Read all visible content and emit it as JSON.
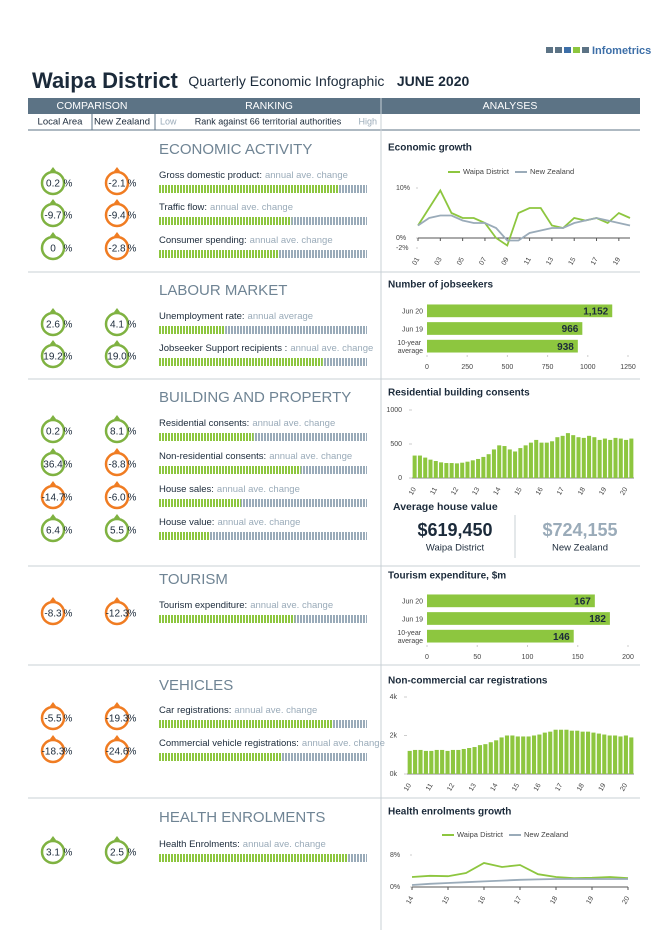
{
  "header": {
    "brand": "Infometrics",
    "title": "Waipa District",
    "subtitle": "Quarterly Economic Infographic",
    "period": "JUNE 2020"
  },
  "columns": {
    "comparison": "COMPARISON",
    "ranking": "RANKING",
    "analyses": "ANALYSES",
    "local": "Local Area",
    "national": "New Zealand",
    "low": "Low",
    "rank_label": "Rank against 66 territorial authorities",
    "high": "High",
    "rank_max": 66
  },
  "percent_sign": "%",
  "sections": [
    {
      "title": "ECONOMIC ACTIVITY",
      "indicators": [
        {
          "name": "Gross domestic product:",
          "note": "annual ave. change",
          "local": 0.2,
          "local_color": "#7fb241",
          "national": -2.1,
          "national_color": "#f07c22",
          "rank": 57
        },
        {
          "name": "Traffic flow:",
          "note": "annual ave. change",
          "local": -9.7,
          "local_color": "#7fb241",
          "national": -9.4,
          "national_color": "#f07c22",
          "rank": 42
        },
        {
          "name": "Consumer spending:",
          "note": "annual ave. change",
          "local": 0,
          "local_color": "#7fb241",
          "national": -2.8,
          "national_color": "#f07c22",
          "rank": 38
        }
      ],
      "chart": {
        "type": "line",
        "title": "Economic growth",
        "x": [
          2001,
          2002,
          2003,
          2004,
          2005,
          2006,
          2007,
          2008,
          2009,
          2010,
          2011,
          2012,
          2013,
          2014,
          2015,
          2016,
          2017,
          2018,
          2019,
          2020
        ],
        "xlim": [
          2001,
          2020
        ],
        "xticks": [
          {
            "value": 2001,
            "label": "01"
          },
          {
            "value": 2003,
            "label": "03"
          },
          {
            "value": 2005,
            "label": "05"
          },
          {
            "value": 2007,
            "label": "07"
          },
          {
            "value": 2009,
            "label": "09"
          },
          {
            "value": 2011,
            "label": "11"
          },
          {
            "value": 2013,
            "label": "13"
          },
          {
            "value": 2015,
            "label": "15"
          },
          {
            "value": 2017,
            "label": "17"
          },
          {
            "value": 2019,
            "label": "19"
          }
        ],
        "ylim": [
          -2,
          12
        ],
        "yticks": [
          {
            "value": 10,
            "label": "10%"
          },
          {
            "value": 0,
            "label": "0%"
          },
          {
            "value": -2,
            "label": "-2%"
          }
        ],
        "series": [
          {
            "name": "Waipa District",
            "color": "#8dc63f",
            "values": [
              2.5,
              6,
              9.5,
              5,
              4,
              4,
              3,
              0,
              -1.5,
              5,
              6,
              6,
              2.5,
              2,
              4,
              3.5,
              4,
              3,
              5,
              4
            ]
          },
          {
            "name": "New Zealand",
            "color": "#9aabb9",
            "values": [
              2.5,
              4,
              4.5,
              4.5,
              3.5,
              3,
              3,
              2,
              -0.5,
              -0.5,
              1,
              1.5,
              2,
              2,
              3,
              3.5,
              4,
              3.5,
              3,
              2.5
            ]
          }
        ]
      }
    },
    {
      "title": "LABOUR MARKET",
      "indicators": [
        {
          "name": "Unemployment rate:",
          "note": "annual average",
          "local": 2.6,
          "local_color": "#7fb241",
          "national": 4.1,
          "national_color": "#7fb241",
          "rank": 21
        },
        {
          "name": "Jobseeker Support recipients :",
          "note": "annual ave. change",
          "local": 19.2,
          "local_color": "#7fb241",
          "national": 19.0,
          "national_label": "19.0",
          "national_color": "#7fb241",
          "rank": 52
        }
      ],
      "chart": {
        "type": "hbar",
        "title": "Number of jobseekers",
        "categories": [
          "Jun 20",
          "Jun 19",
          "10-year average"
        ],
        "values": [
          1152,
          966,
          938
        ],
        "value_labels": [
          "1,152",
          "966",
          "938"
        ],
        "color": "#8dc63f",
        "xlim": [
          0,
          1250
        ],
        "xticks": [
          0,
          250,
          500,
          750,
          1000,
          1250
        ]
      }
    },
    {
      "title": "BUILDING AND PROPERTY",
      "indicators": [
        {
          "name": "Residential consents:",
          "note": "annual ave. change",
          "local": 0.2,
          "local_color": "#7fb241",
          "national": 8.1,
          "national_color": "#7fb241",
          "rank": 30
        },
        {
          "name": "Non-residential consents:",
          "note": "annual ave. change",
          "local": 36.4,
          "local_color": "#7fb241",
          "national": -8.8,
          "national_color": "#f07c22",
          "rank": 45
        },
        {
          "name": "House sales:",
          "note": "annual ave. change",
          "local": -14.7,
          "local_color": "#f07c22",
          "national": -6.0,
          "national_label": "-6.0",
          "national_color": "#f07c22",
          "rank": 26
        },
        {
          "name": "House value:",
          "note": "annual ave. change",
          "local": 6.4,
          "local_color": "#7fb241",
          "national": 5.5,
          "national_color": "#7fb241",
          "rank": 16
        }
      ],
      "chart": {
        "type": "bar",
        "title": "Residential building consents",
        "color": "#8dc63f",
        "categories": [
          "10",
          null,
          null,
          null,
          "11",
          null,
          null,
          null,
          "12",
          null,
          null,
          null,
          "13",
          null,
          null,
          null,
          "14",
          null,
          null,
          null,
          "15",
          null,
          null,
          null,
          "16",
          null,
          null,
          null,
          "17",
          null,
          null,
          null,
          "18",
          null,
          null,
          null,
          "19",
          null,
          null,
          null,
          "20",
          null
        ],
        "values": [
          330,
          330,
          300,
          270,
          250,
          230,
          220,
          220,
          215,
          225,
          240,
          260,
          280,
          310,
          350,
          420,
          480,
          470,
          420,
          390,
          440,
          480,
          520,
          560,
          520,
          520,
          540,
          600,
          620,
          660,
          630,
          600,
          590,
          620,
          600,
          560,
          580,
          560,
          590,
          580,
          560,
          580
        ],
        "ylim": [
          0,
          1000
        ],
        "yticks": [
          0,
          500,
          1000
        ]
      },
      "house_value": {
        "title": "Average house value",
        "local": "$619,450",
        "local_label": "Waipa District",
        "national": "$724,155",
        "national_label": "New Zealand"
      }
    },
    {
      "title": "TOURISM",
      "indicators": [
        {
          "name": "Tourism expenditure:",
          "note": "annual ave. change",
          "local": -8.3,
          "local_color": "#f07c22",
          "national": -12.3,
          "national_color": "#f07c22",
          "rank": 43
        }
      ],
      "chart": {
        "type": "hbar",
        "title": "Tourism expenditure, $m",
        "categories": [
          "Jun 20",
          "Jun 19",
          "10-year average"
        ],
        "values": [
          167,
          182,
          146
        ],
        "color": "#8dc63f",
        "xlim": [
          0,
          200
        ],
        "xticks": [
          0,
          50,
          100,
          150,
          200
        ]
      }
    },
    {
      "title": "VEHICLES",
      "indicators": [
        {
          "name": "Car registrations:",
          "note": "annual ave. change",
          "local": -5.5,
          "local_color": "#f07c22",
          "national": -19.3,
          "national_color": "#f07c22",
          "rank": 55
        },
        {
          "name": "Commercial vehicle registrations:",
          "note": "annual ave. change",
          "local": -18.3,
          "local_color": "#f07c22",
          "national": -24.6,
          "national_color": "#f07c22",
          "rank": 39
        }
      ],
      "chart": {
        "type": "bar",
        "title": "Non-commercial car registrations",
        "color": "#8dc63f",
        "categories": [
          "10",
          null,
          null,
          null,
          "11",
          null,
          null,
          null,
          "12",
          null,
          null,
          null,
          "13",
          null,
          null,
          null,
          "14",
          null,
          null,
          null,
          "15",
          null,
          null,
          null,
          "16",
          null,
          null,
          null,
          "17",
          null,
          null,
          null,
          "18",
          null,
          null,
          null,
          "19",
          null,
          null,
          null,
          "20",
          null
        ],
        "values": [
          1200,
          1250,
          1250,
          1200,
          1200,
          1250,
          1250,
          1200,
          1250,
          1250,
          1300,
          1350,
          1400,
          1500,
          1550,
          1650,
          1750,
          1900,
          2000,
          2000,
          1950,
          1950,
          1950,
          2000,
          2050,
          2150,
          2200,
          2300,
          2300,
          2300,
          2250,
          2250,
          2200,
          2200,
          2150,
          2100,
          2050,
          2000,
          2000,
          1950,
          2000,
          1900
        ],
        "ylim": [
          0,
          4000
        ],
        "yticks": [
          {
            "value": 0,
            "label": "0k"
          },
          {
            "value": 2000,
            "label": "2k"
          },
          {
            "value": 4000,
            "label": "4k"
          }
        ]
      }
    },
    {
      "title": "HEALTH ENROLMENTS",
      "indicators": [
        {
          "name": "Health Enrolments:",
          "note": "annual ave. change",
          "local": 3.1,
          "local_color": "#7fb241",
          "national": 2.5,
          "national_color": "#7fb241",
          "rank": 60
        }
      ],
      "chart": {
        "type": "line",
        "title": "Health enrolments growth",
        "x": [
          2014,
          2014.5,
          2015,
          2015.5,
          2016,
          2016.5,
          2017,
          2017.5,
          2018,
          2018.5,
          2019,
          2019.5,
          2020
        ],
        "xlim": [
          2014,
          2020
        ],
        "xticks": [
          {
            "value": 2014,
            "label": "14"
          },
          {
            "value": 2015,
            "label": "15"
          },
          {
            "value": 2016,
            "label": "16"
          },
          {
            "value": 2017,
            "label": "17"
          },
          {
            "value": 2018,
            "label": "18"
          },
          {
            "value": 2019,
            "label": "19"
          },
          {
            "value": 2020,
            "label": "20"
          }
        ],
        "ylim": [
          0,
          10
        ],
        "yticks": [
          {
            "value": 8,
            "label": "8%"
          },
          {
            "value": 0,
            "label": "0%"
          }
        ],
        "series": [
          {
            "name": "Waipa District",
            "color": "#8dc63f",
            "values": [
              2.5,
              2.8,
              2.7,
              3.5,
              6,
              5,
              5.5,
              3.2,
              2.5,
              2.2,
              2.3,
              2.5,
              2.2
            ]
          },
          {
            "name": "New Zealand",
            "color": "#9aabb9",
            "values": [
              0.5,
              0.8,
              1,
              1.2,
              1.4,
              1.6,
              1.8,
              1.9,
              2,
              2,
              2,
              2,
              2
            ]
          }
        ]
      }
    }
  ]
}
